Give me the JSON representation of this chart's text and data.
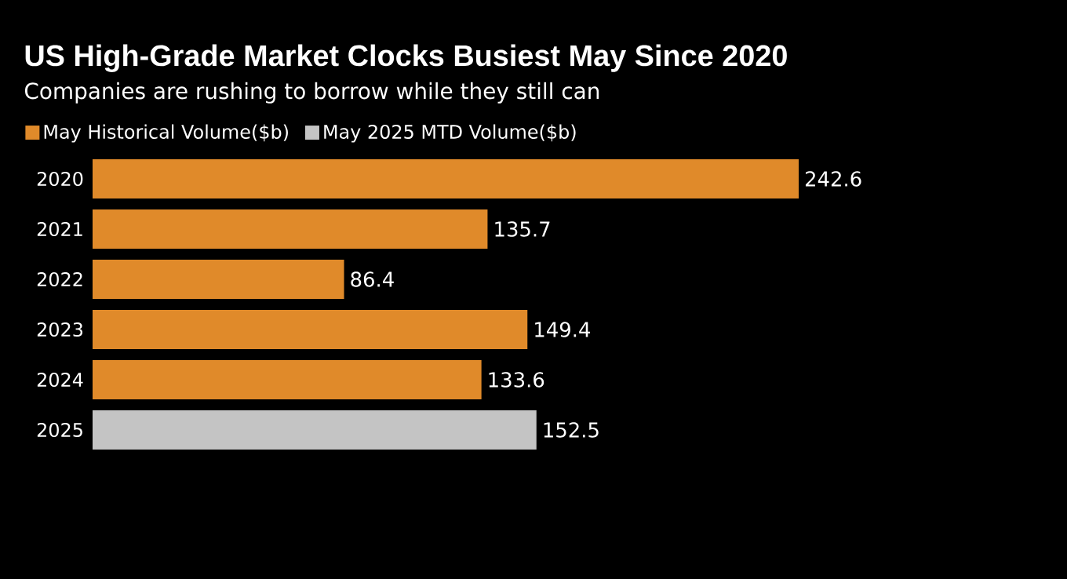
{
  "chart_data": {
    "type": "bar",
    "orientation": "horizontal",
    "title": "US High-Grade Market Clocks Busiest May Since 2020",
    "subtitle": "Companies are rushing to borrow while they still can",
    "categories": [
      "2020",
      "2021",
      "2022",
      "2023",
      "2024",
      "2025"
    ],
    "series": [
      {
        "name": "May Historical Volume($b)",
        "color": "#e08a2a",
        "values": [
          242.6,
          135.7,
          86.4,
          149.4,
          133.6,
          null
        ]
      },
      {
        "name": "May 2025 MTD Volume($b)",
        "color": "#c4c4c4",
        "values": [
          null,
          null,
          null,
          null,
          null,
          152.5
        ]
      }
    ],
    "data_labels": true,
    "legend": "top left",
    "tick_labels": "y"
  }
}
